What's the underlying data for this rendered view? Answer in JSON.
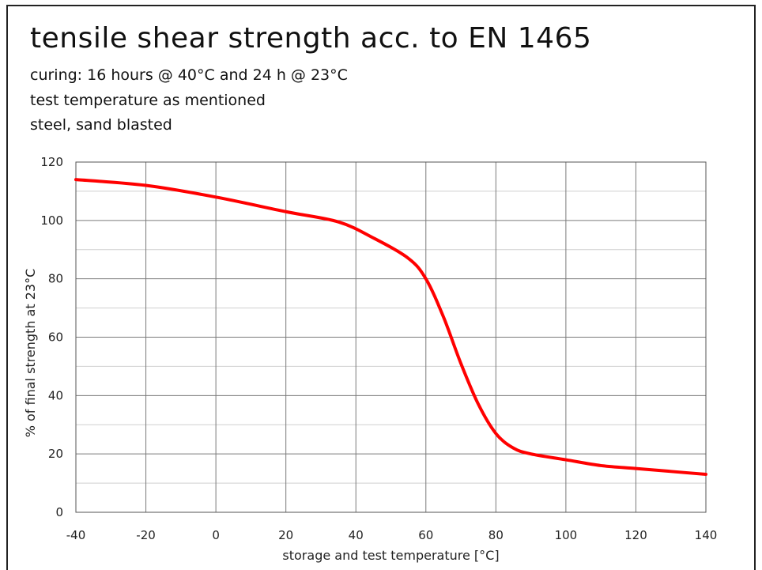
{
  "header": {
    "title": "tensile shear strength acc. to  EN 1465",
    "line1": "curing: 16 hours @  40°C and 24 h @ 23°C",
    "line2": "test temperature as mentioned",
    "line3": "steel, sand blasted"
  },
  "chart_data": {
    "type": "line",
    "title": "tensile shear strength acc. to  EN 1465",
    "xlabel": "storage and test temperature [°C]",
    "ylabel": "% of final strength at  23°C",
    "xlim": [
      -40,
      140
    ],
    "ylim": [
      0,
      120
    ],
    "xticks": [
      -40,
      -20,
      0,
      20,
      40,
      60,
      80,
      100,
      120,
      140
    ],
    "yticks": [
      0,
      20,
      40,
      60,
      80,
      100,
      120
    ],
    "grid": true,
    "line_color": "#ff0000",
    "series": [
      {
        "x": [
          -40,
          -20,
          0,
          20,
          35,
          45,
          55,
          60,
          65,
          70,
          75,
          80,
          85,
          90,
          100,
          110,
          120,
          130,
          140
        ],
        "y": [
          114,
          112,
          108,
          103,
          99.5,
          94,
          87,
          80,
          67,
          51,
          37,
          27,
          22,
          20,
          18,
          16,
          15,
          14,
          13
        ]
      }
    ]
  }
}
